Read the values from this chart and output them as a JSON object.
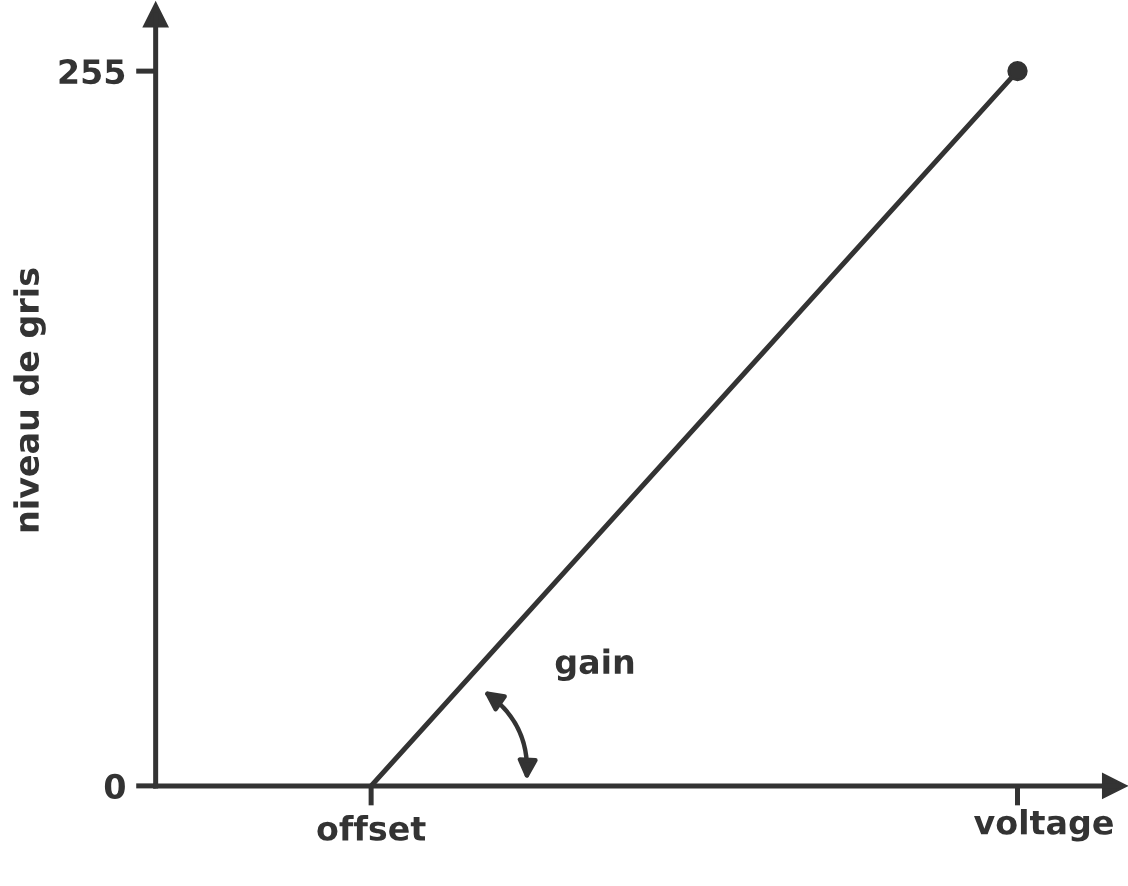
{
  "chart_data": {
    "type": "line",
    "categories": [
      null,
      "offset",
      null,
      null,
      null
    ],
    "series": [
      {
        "color": "#333333",
        "values": [
          null,
          0,
          85,
          170,
          255
        ]
      },
      {
        "type": "scatter",
        "color": "#333333",
        "values": [
          null,
          null,
          null,
          null,
          255
        ]
      }
    ],
    "xlabel": "voltage",
    "ylabel": "niveau de gris",
    "annotations": [
      "gain"
    ],
    "ylim": [
      0,
      275
    ],
    "yticks": [
      0,
      255
    ],
    "grid": false,
    "legend": false
  }
}
